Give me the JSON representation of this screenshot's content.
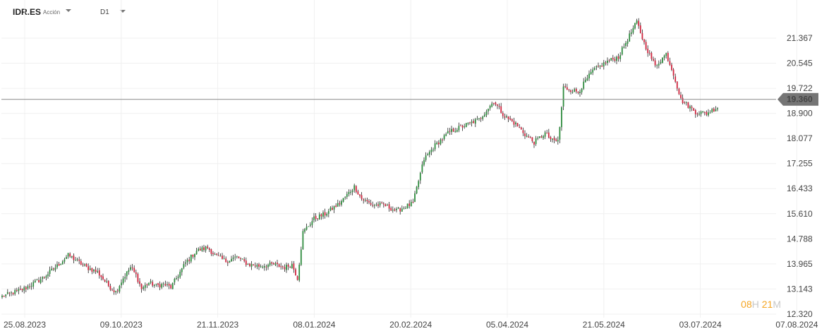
{
  "toolbar": {
    "symbol": "IDR.ES",
    "asset_type": "Acción",
    "timeframe": "D1"
  },
  "timer": {
    "hours": "08",
    "hours_unit": "H",
    "minutes": "21",
    "minutes_unit": "M"
  },
  "chart_data": {
    "type": "candlestick",
    "title": "",
    "current_price": 19.36,
    "current_price_label": "19.360",
    "y_ticks": [
      "21.367",
      "20.545",
      "19.722",
      "18.900",
      "18.077",
      "17.255",
      "16.433",
      "15.610",
      "14.788",
      "13.965",
      "13.143",
      "12.320"
    ],
    "y_tick_values": [
      21.367,
      20.545,
      19.722,
      18.9,
      18.077,
      17.255,
      16.433,
      15.61,
      14.788,
      13.965,
      13.143,
      12.32
    ],
    "ylim": [
      12.32,
      21.367
    ],
    "x_ticks": [
      "25.08.2023",
      "09.10.2023",
      "21.11.2023",
      "08.01.2024",
      "20.02.2024",
      "05.04.2024",
      "21.05.2024",
      "03.07.2024",
      "07.08.2024"
    ],
    "grid": true,
    "up_color": "#2e8b3e",
    "down_color": "#d0243e",
    "close_path": [
      [
        0,
        12.9
      ],
      [
        12,
        13.15
      ],
      [
        22,
        13.5
      ],
      [
        30,
        13.9
      ],
      [
        36,
        14.25
      ],
      [
        40,
        14.1
      ],
      [
        46,
        13.85
      ],
      [
        52,
        13.7
      ],
      [
        58,
        13.25
      ],
      [
        62,
        13.05
      ],
      [
        66,
        13.5
      ],
      [
        70,
        13.85
      ],
      [
        73,
        13.6
      ],
      [
        76,
        13.15
      ],
      [
        80,
        13.35
      ],
      [
        84,
        13.25
      ],
      [
        88,
        13.3
      ],
      [
        92,
        13.2
      ],
      [
        95,
        13.5
      ],
      [
        100,
        14.0
      ],
      [
        106,
        14.4
      ],
      [
        112,
        14.5
      ],
      [
        116,
        14.25
      ],
      [
        122,
        14.05
      ],
      [
        128,
        14.2
      ],
      [
        134,
        13.95
      ],
      [
        140,
        13.9
      ],
      [
        148,
        13.95
      ],
      [
        154,
        13.85
      ],
      [
        158,
        13.95
      ],
      [
        161,
        13.5
      ],
      [
        164,
        15.0
      ],
      [
        170,
        15.45
      ],
      [
        176,
        15.6
      ],
      [
        184,
        15.95
      ],
      [
        192,
        16.5
      ],
      [
        196,
        16.1
      ],
      [
        202,
        15.9
      ],
      [
        208,
        15.9
      ],
      [
        215,
        15.7
      ],
      [
        220,
        15.85
      ],
      [
        224,
        15.95
      ],
      [
        226,
        16.45
      ],
      [
        230,
        17.4
      ],
      [
        236,
        17.85
      ],
      [
        244,
        18.3
      ],
      [
        252,
        18.5
      ],
      [
        260,
        18.7
      ],
      [
        268,
        19.3
      ],
      [
        274,
        18.8
      ],
      [
        280,
        18.55
      ],
      [
        286,
        18.15
      ],
      [
        290,
        17.95
      ],
      [
        296,
        18.25
      ],
      [
        300,
        18.0
      ],
      [
        303,
        18.0
      ],
      [
        304,
        18.45
      ],
      [
        306,
        19.75
      ],
      [
        314,
        19.6
      ],
      [
        322,
        20.3
      ],
      [
        330,
        20.6
      ],
      [
        336,
        20.75
      ],
      [
        342,
        21.45
      ],
      [
        346,
        21.9
      ],
      [
        350,
        21.2
      ],
      [
        356,
        20.45
      ],
      [
        362,
        20.85
      ],
      [
        366,
        20.2
      ],
      [
        370,
        19.35
      ],
      [
        378,
        18.95
      ],
      [
        384,
        18.9
      ],
      [
        390,
        19.1
      ]
    ]
  }
}
